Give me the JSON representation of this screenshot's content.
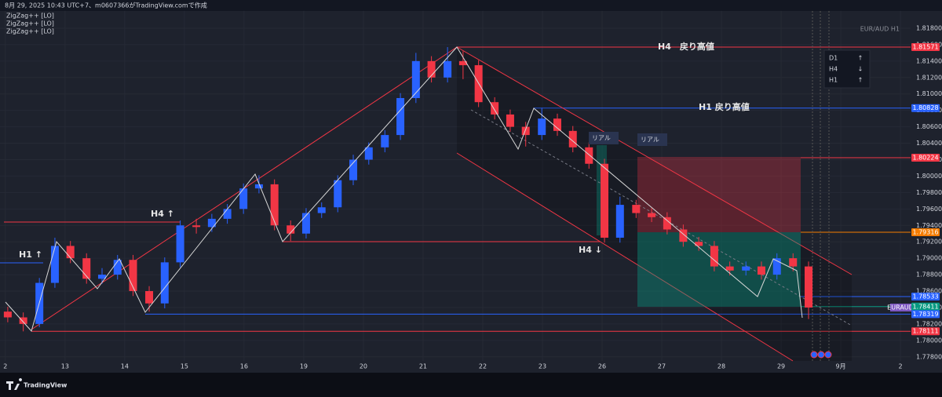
{
  "header": {
    "caption": "8月 29, 2025 10:43 UTC+7、m0607366がTradingView.comで作成",
    "indicators": [
      "ZigZag++ [LO]",
      "ZigZag++ [LO]",
      "ZigZag++ [LO]"
    ]
  },
  "chart_data": {
    "type": "candlestick",
    "title": "EUR/AUD H1",
    "symbol": "EURAUD",
    "up_color": "#2962ff",
    "down_color": "#f23645",
    "xlim": [
      -0.09,
      15.17
    ],
    "ylim": [
      1.7775,
      1.8201
    ],
    "xticks": [
      {
        "value": 0,
        "label": "2"
      },
      {
        "value": 1,
        "label": "13"
      },
      {
        "value": 2,
        "label": "14"
      },
      {
        "value": 3,
        "label": "15"
      },
      {
        "value": 4,
        "label": "16"
      },
      {
        "value": 5,
        "label": "19"
      },
      {
        "value": 6,
        "label": "20"
      },
      {
        "value": 7,
        "label": "21"
      },
      {
        "value": 8,
        "label": "22"
      },
      {
        "value": 9,
        "label": "23"
      },
      {
        "value": 10,
        "label": "26"
      },
      {
        "value": 11,
        "label": "27"
      },
      {
        "value": 12,
        "label": "28"
      },
      {
        "value": 13,
        "label": "29"
      },
      {
        "value": 14,
        "label": "9月"
      },
      {
        "value": 15,
        "label": "2"
      }
    ],
    "yticks": [
      {
        "value": 1.778,
        "label": "1.77800"
      },
      {
        "value": 1.78,
        "label": "1.78000"
      },
      {
        "value": 1.782,
        "label": "1.78200"
      },
      {
        "value": 1.784,
        "label": "1.78400"
      },
      {
        "value": 1.786,
        "label": "1.78600"
      },
      {
        "value": 1.788,
        "label": "1.78800"
      },
      {
        "value": 1.79,
        "label": "1.79000"
      },
      {
        "value": 1.792,
        "label": "1.79200"
      },
      {
        "value": 1.794,
        "label": "1.79400"
      },
      {
        "value": 1.796,
        "label": "1.79600"
      },
      {
        "value": 1.798,
        "label": "1.79800"
      },
      {
        "value": 1.8,
        "label": "1.80000"
      },
      {
        "value": 1.802,
        "label": "1.80200"
      },
      {
        "value": 1.804,
        "label": "1.80400"
      },
      {
        "value": 1.806,
        "label": "1.80600"
      },
      {
        "value": 1.808,
        "label": "1.80800"
      },
      {
        "value": 1.81,
        "label": "1.81000"
      },
      {
        "value": 1.812,
        "label": "1.81200"
      },
      {
        "value": 1.814,
        "label": "1.81400"
      },
      {
        "value": 1.816,
        "label": "1.81600"
      },
      {
        "value": 1.818,
        "label": "1.81800"
      }
    ],
    "x": [
      0.04,
      0.3,
      0.57,
      0.83,
      1.09,
      1.36,
      1.62,
      1.88,
      2.14,
      2.41,
      2.67,
      2.93,
      3.2,
      3.46,
      3.72,
      3.99,
      4.25,
      4.51,
      4.78,
      5.04,
      5.3,
      5.57,
      5.83,
      6.09,
      6.36,
      6.62,
      6.88,
      7.14,
      7.41,
      7.67,
      7.93,
      8.2,
      8.46,
      8.72,
      8.99,
      9.25,
      9.51,
      9.78,
      10.04,
      10.3,
      10.57,
      10.83,
      11.09,
      11.36,
      11.62,
      11.88,
      12.14,
      12.41,
      12.67,
      12.93,
      13.2,
      13.46
    ],
    "open": [
      1.7835,
      1.7828,
      1.782,
      1.787,
      1.7915,
      1.79,
      1.7875,
      1.788,
      1.7898,
      1.786,
      1.7845,
      1.7895,
      1.794,
      1.7938,
      1.7948,
      1.796,
      1.7985,
      1.799,
      1.794,
      1.793,
      1.7955,
      1.7962,
      1.7995,
      1.802,
      1.8035,
      1.805,
      1.8095,
      1.814,
      1.812,
      1.814,
      1.8135,
      1.809,
      1.8075,
      1.806,
      1.805,
      1.807,
      1.8055,
      1.8035,
      1.8015,
      1.7925,
      1.7965,
      1.7955,
      1.795,
      1.7935,
      1.792,
      1.7915,
      1.789,
      1.7885,
      1.789,
      1.788,
      1.79,
      1.789
    ],
    "high": [
      1.7841,
      1.7834,
      1.7876,
      1.7925,
      1.7921,
      1.7906,
      1.7888,
      1.7904,
      1.7904,
      1.7866,
      1.7901,
      1.7946,
      1.7948,
      1.7954,
      1.7966,
      1.7991,
      1.8001,
      1.7996,
      1.7946,
      1.7961,
      1.7968,
      1.8001,
      1.8026,
      1.8041,
      1.8056,
      1.8101,
      1.815,
      1.8146,
      1.8157,
      1.8152,
      1.8141,
      1.8096,
      1.8081,
      1.8066,
      1.8083,
      1.8076,
      1.8061,
      1.8041,
      1.8021,
      1.7975,
      1.7971,
      1.7961,
      1.7956,
      1.7941,
      1.7926,
      1.7921,
      1.7896,
      1.7896,
      1.7896,
      1.7906,
      1.7906,
      1.7896
    ],
    "low": [
      1.7822,
      1.7811,
      1.7816,
      1.7864,
      1.7894,
      1.7869,
      1.7869,
      1.7874,
      1.7854,
      1.7835,
      1.7839,
      1.7889,
      1.793,
      1.7932,
      1.7942,
      1.7954,
      1.7979,
      1.7934,
      1.7921,
      1.7924,
      1.7949,
      1.7956,
      1.7989,
      1.8014,
      1.8029,
      1.8044,
      1.8089,
      1.8114,
      1.8114,
      1.8118,
      1.8084,
      1.8069,
      1.8054,
      1.8036,
      1.8044,
      1.8049,
      1.8029,
      1.8009,
      1.7919,
      1.7919,
      1.7949,
      1.7944,
      1.7929,
      1.7914,
      1.7909,
      1.7884,
      1.7879,
      1.7879,
      1.7874,
      1.7874,
      1.7884,
      1.7826
    ],
    "close": [
      1.7828,
      1.782,
      1.787,
      1.7915,
      1.79,
      1.7875,
      1.788,
      1.7898,
      1.786,
      1.7845,
      1.7895,
      1.794,
      1.7938,
      1.7948,
      1.796,
      1.7985,
      1.799,
      1.794,
      1.793,
      1.7955,
      1.7962,
      1.7995,
      1.802,
      1.8035,
      1.805,
      1.8095,
      1.814,
      1.812,
      1.814,
      1.8135,
      1.809,
      1.8075,
      1.806,
      1.805,
      1.807,
      1.8055,
      1.8035,
      1.8015,
      1.7925,
      1.7965,
      1.7955,
      1.795,
      1.7935,
      1.792,
      1.7915,
      1.789,
      1.7885,
      1.789,
      1.788,
      1.79,
      1.789,
      1.784
    ],
    "levels": [
      {
        "value": 1.81571,
        "label": "1.81571",
        "color": "#f23645"
      },
      {
        "value": 1.80828,
        "label": "1.80828",
        "color": "#2962ff"
      },
      {
        "value": 1.80224,
        "label": "1.80224",
        "color": "#f23645"
      },
      {
        "value": 1.79316,
        "label": "1.79316",
        "color": "#f57c00"
      },
      {
        "value": 1.78533,
        "label": "1.78533",
        "color": "#2962ff"
      },
      {
        "value": 1.78411,
        "label": "1.78411",
        "color": "#089981"
      },
      {
        "value": 1.78319,
        "label": "1.78319",
        "color": "#2962ff"
      },
      {
        "value": 1.78111,
        "label": "1.78111",
        "color": "#f23645"
      }
    ],
    "annotations": [
      "H4　戻り高値",
      "H1 戻り高値",
      "H4 ↑",
      "H1 ↑",
      "H4 ↓",
      "リアル",
      "リアル"
    ],
    "trend_box": [
      {
        "tf": "D1",
        "arrow": "↑"
      },
      {
        "tf": "H4",
        "arrow": "↓"
      },
      {
        "tf": "H1",
        "arrow": "↑"
      }
    ]
  },
  "footer": {
    "brand": "TradingView"
  }
}
